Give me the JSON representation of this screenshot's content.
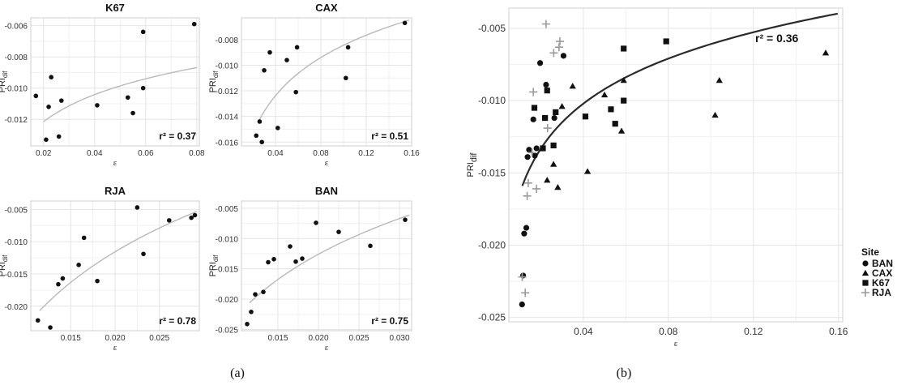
{
  "panel_labels": {
    "a": "(a)",
    "b": "(b)"
  },
  "legend": {
    "title": "Site",
    "items": [
      {
        "name": "BAN",
        "shape": "circle"
      },
      {
        "name": "CAX",
        "shape": "triangle"
      },
      {
        "name": "K67",
        "shape": "square"
      },
      {
        "name": "RJA",
        "shape": "plus"
      }
    ]
  },
  "chart_data": [
    {
      "id": "k67",
      "type": "scatter",
      "title": "K67",
      "xlabel": "ε",
      "ylabel_main": "PRI",
      "ylabel_sub": "dif",
      "xlim": [
        0.015,
        0.081
      ],
      "ylim": [
        -0.0137,
        -0.0055
      ],
      "xticks": [
        0.02,
        0.04,
        0.06,
        0.08
      ],
      "yticks": [
        -0.012,
        -0.01,
        -0.008,
        -0.006
      ],
      "xtick_labels": [
        "0.02",
        "0.04",
        "0.06",
        "0.08"
      ],
      "ytick_labels": [
        "-0.012",
        "-0.010",
        "-0.008",
        "-0.006"
      ],
      "r2": "r² = 0.37",
      "points": [
        [
          0.017,
          -0.0105
        ],
        [
          0.021,
          -0.0133
        ],
        [
          0.022,
          -0.0112
        ],
        [
          0.023,
          -0.0093
        ],
        [
          0.026,
          -0.0131
        ],
        [
          0.027,
          -0.0108
        ],
        [
          0.041,
          -0.0111
        ],
        [
          0.053,
          -0.0106
        ],
        [
          0.055,
          -0.0116
        ],
        [
          0.059,
          -0.01
        ],
        [
          0.059,
          -0.0064
        ],
        [
          0.079,
          -0.0059
        ]
      ],
      "fit": {
        "a": -0.01215,
        "b": 0.0025,
        "x0": 0.02
      }
    },
    {
      "id": "cax",
      "type": "scatter",
      "title": "CAX",
      "xlabel": "ε",
      "ylabel_main": "PRI",
      "ylabel_sub": "dif",
      "xlim": [
        0.01,
        0.16
      ],
      "ylim": [
        -0.0163,
        -0.0063
      ],
      "xticks": [
        0.04,
        0.08,
        0.12,
        0.16
      ],
      "yticks": [
        -0.016,
        -0.014,
        -0.012,
        -0.01,
        -0.008
      ],
      "xtick_labels": [
        "0.04",
        "0.08",
        "0.12",
        "0.16"
      ],
      "ytick_labels": [
        "-0.016",
        "-0.014",
        "-0.012",
        "-0.010",
        "-0.008"
      ],
      "r2": "r² = 0.51",
      "points": [
        [
          0.023,
          -0.0155
        ],
        [
          0.026,
          -0.0144
        ],
        [
          0.028,
          -0.016
        ],
        [
          0.03,
          -0.0104
        ],
        [
          0.035,
          -0.009
        ],
        [
          0.042,
          -0.0149
        ],
        [
          0.05,
          -0.0096
        ],
        [
          0.058,
          -0.0121
        ],
        [
          0.059,
          -0.0086
        ],
        [
          0.102,
          -0.011
        ],
        [
          0.104,
          -0.0086
        ],
        [
          0.154,
          -0.0067
        ]
      ],
      "fit": {
        "a": -0.0144,
        "b": 0.0043,
        "x0": 0.025
      }
    },
    {
      "id": "rja",
      "type": "scatter",
      "title": "RJA",
      "xlabel": "ε",
      "ylabel_main": "PRI",
      "ylabel_sub": "dif",
      "xlim": [
        0.0105,
        0.0295
      ],
      "ylim": [
        -0.0238,
        -0.0037
      ],
      "xticks": [
        0.015,
        0.02,
        0.025
      ],
      "yticks": [
        -0.02,
        -0.015,
        -0.01,
        -0.005
      ],
      "xtick_labels": [
        "0.015",
        "0.020",
        "0.025"
      ],
      "ytick_labels": [
        "-0.020",
        "-0.015",
        "-0.010",
        "-0.005"
      ],
      "r2": "r² = 0.78",
      "points": [
        [
          0.0113,
          -0.0222
        ],
        [
          0.0127,
          -0.0233
        ],
        [
          0.0136,
          -0.0166
        ],
        [
          0.0141,
          -0.0157
        ],
        [
          0.0159,
          -0.0136
        ],
        [
          0.0165,
          -0.0094
        ],
        [
          0.018,
          -0.0161
        ],
        [
          0.0225,
          -0.0047
        ],
        [
          0.0232,
          -0.0119
        ],
        [
          0.0261,
          -0.0067
        ],
        [
          0.0286,
          -0.0063
        ],
        [
          0.029,
          -0.0059
        ]
      ],
      "fit": {
        "a": -0.0207,
        "b": 0.0165,
        "x0": 0.0115
      }
    },
    {
      "id": "ban",
      "type": "scatter",
      "title": "BAN",
      "xlabel": "ε",
      "ylabel_main": "PRI",
      "ylabel_sub": "dif",
      "xlim": [
        0.0105,
        0.0315
      ],
      "ylim": [
        -0.0252,
        -0.0038
      ],
      "xticks": [
        0.015,
        0.02,
        0.025,
        0.03
      ],
      "yticks": [
        -0.025,
        -0.02,
        -0.015,
        -0.01,
        -0.005
      ],
      "xtick_labels": [
        "0.015",
        "0.020",
        "0.025",
        "0.030"
      ],
      "ytick_labels": [
        "-0.025",
        "-0.020",
        "-0.015",
        "-0.010",
        "-0.005"
      ],
      "r2": "r² = 0.75",
      "points": [
        [
          0.0112,
          -0.0241
        ],
        [
          0.0117,
          -0.0221
        ],
        [
          0.0122,
          -0.0192
        ],
        [
          0.0132,
          -0.0188
        ],
        [
          0.0138,
          -0.0139
        ],
        [
          0.0145,
          -0.0134
        ],
        [
          0.0165,
          -0.0113
        ],
        [
          0.0172,
          -0.0138
        ],
        [
          0.018,
          -0.0133
        ],
        [
          0.0197,
          -0.0074
        ],
        [
          0.0225,
          -0.0089
        ],
        [
          0.0264,
          -0.0112
        ],
        [
          0.0307,
          -0.0069
        ]
      ],
      "fit": {
        "a": -0.0206,
        "b": 0.0145,
        "x0": 0.0115
      }
    },
    {
      "id": "combined",
      "type": "scatter",
      "title": "",
      "xlabel": "ε",
      "ylabel_main": "PRI",
      "ylabel_sub": "dif",
      "xlim": [
        0.005,
        0.162
      ],
      "ylim": [
        -0.0253,
        -0.0036
      ],
      "xticks": [
        0.04,
        0.08,
        0.12,
        0.16
      ],
      "yticks": [
        -0.025,
        -0.02,
        -0.015,
        -0.01,
        -0.005
      ],
      "xtick_labels": [
        "0.04",
        "0.08",
        "0.12",
        "0.16"
      ],
      "ytick_labels": [
        "-0.025",
        "-0.020",
        "-0.015",
        "-0.010",
        "-0.005"
      ],
      "r2": "r² = 0.36",
      "fit": {
        "a": -0.0159,
        "b": 0.0045,
        "x0": 0.0113
      },
      "series": [
        {
          "name": "BAN",
          "shape": "circle",
          "points": [
            [
              0.0112,
              -0.0241
            ],
            [
              0.0117,
              -0.0221
            ],
            [
              0.0122,
              -0.0192
            ],
            [
              0.0132,
              -0.0188
            ],
            [
              0.0138,
              -0.0139
            ],
            [
              0.0145,
              -0.0134
            ],
            [
              0.0165,
              -0.0113
            ],
            [
              0.0172,
              -0.0138
            ],
            [
              0.018,
              -0.0133
            ],
            [
              0.0197,
              -0.0074
            ],
            [
              0.0225,
              -0.0089
            ],
            [
              0.0264,
              -0.0112
            ],
            [
              0.0307,
              -0.0069
            ]
          ]
        },
        {
          "name": "CAX",
          "shape": "triangle",
          "points": [
            [
              0.023,
              -0.0155
            ],
            [
              0.026,
              -0.0144
            ],
            [
              0.028,
              -0.016
            ],
            [
              0.03,
              -0.0104
            ],
            [
              0.035,
              -0.009
            ],
            [
              0.042,
              -0.0149
            ],
            [
              0.05,
              -0.0096
            ],
            [
              0.058,
              -0.0121
            ],
            [
              0.059,
              -0.0086
            ],
            [
              0.102,
              -0.011
            ],
            [
              0.104,
              -0.0086
            ],
            [
              0.154,
              -0.0067
            ]
          ]
        },
        {
          "name": "K67",
          "shape": "square",
          "points": [
            [
              0.017,
              -0.0105
            ],
            [
              0.021,
              -0.0133
            ],
            [
              0.022,
              -0.0112
            ],
            [
              0.023,
              -0.0093
            ],
            [
              0.026,
              -0.0131
            ],
            [
              0.027,
              -0.0108
            ],
            [
              0.041,
              -0.0111
            ],
            [
              0.053,
              -0.0106
            ],
            [
              0.055,
              -0.0116
            ],
            [
              0.059,
              -0.01
            ],
            [
              0.059,
              -0.0064
            ],
            [
              0.079,
              -0.0059
            ]
          ]
        },
        {
          "name": "RJA",
          "shape": "plus",
          "points": [
            [
              0.0113,
              -0.0222
            ],
            [
              0.0127,
              -0.0233
            ],
            [
              0.0136,
              -0.0166
            ],
            [
              0.0141,
              -0.0157
            ],
            [
              0.0159,
              -0.0136
            ],
            [
              0.0165,
              -0.0094
            ],
            [
              0.018,
              -0.0161
            ],
            [
              0.0225,
              -0.0047
            ],
            [
              0.0232,
              -0.0119
            ],
            [
              0.0261,
              -0.0067
            ],
            [
              0.0286,
              -0.0063
            ],
            [
              0.029,
              -0.0059
            ]
          ]
        }
      ]
    }
  ]
}
